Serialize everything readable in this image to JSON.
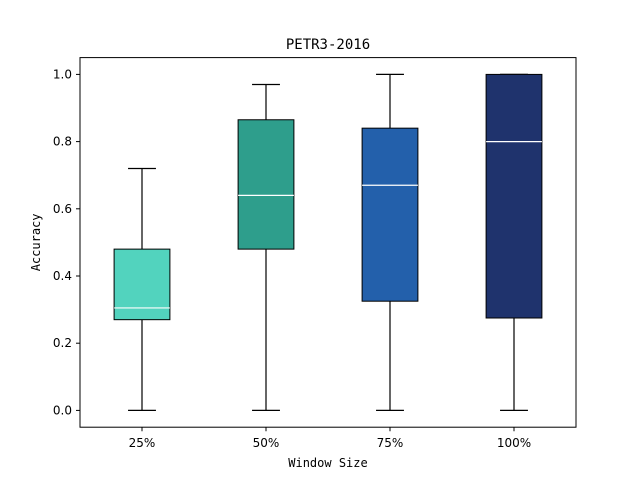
{
  "chart_data": {
    "type": "box",
    "title": "PETR3-2016",
    "xlabel": "Window Size",
    "ylabel": "Accuracy",
    "ylim": [
      -0.05,
      1.05
    ],
    "yticks": [
      0.0,
      0.2,
      0.4,
      0.6,
      0.8,
      1.0
    ],
    "ytick_labels": [
      "0.0",
      "0.2",
      "0.4",
      "0.6",
      "0.8",
      "1.0"
    ],
    "categories": [
      "25%",
      "50%",
      "75%",
      "100%"
    ],
    "boxes": [
      {
        "label": "25%",
        "whisker_low": 0.0,
        "q1": 0.27,
        "median": 0.305,
        "q3": 0.48,
        "whisker_high": 0.72,
        "color": "#52d3be"
      },
      {
        "label": "50%",
        "whisker_low": 0.0,
        "q1": 0.48,
        "median": 0.64,
        "q3": 0.865,
        "whisker_high": 0.97,
        "color": "#2e9e8c"
      },
      {
        "label": "75%",
        "whisker_low": 0.0,
        "q1": 0.325,
        "median": 0.67,
        "q3": 0.84,
        "whisker_high": 1.0,
        "color": "#2360ab"
      },
      {
        "label": "100%",
        "whisker_low": 0.0,
        "q1": 0.275,
        "median": 0.8,
        "q3": 1.0,
        "whisker_high": 1.0,
        "color": "#1f336d"
      }
    ],
    "median_color": "#ffffff",
    "grid": false,
    "legend": "none"
  }
}
